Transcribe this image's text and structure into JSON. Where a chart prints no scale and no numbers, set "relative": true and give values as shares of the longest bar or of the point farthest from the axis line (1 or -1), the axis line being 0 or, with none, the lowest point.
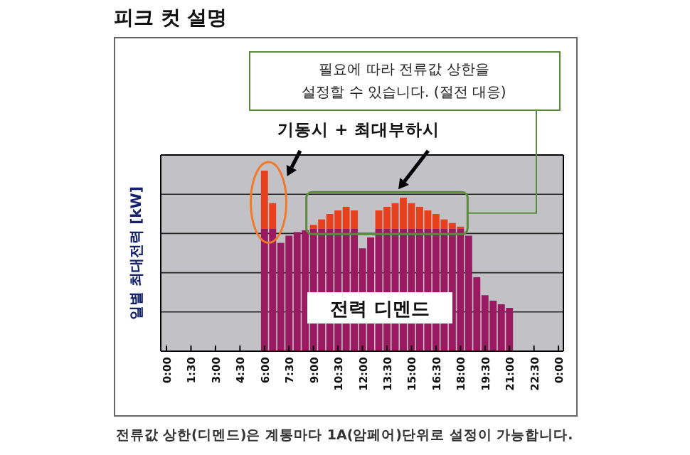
{
  "chart_data": {
    "type": "bar",
    "title": "피크 컷 설명",
    "ylabel": "일별 최대전력 [kW]",
    "relative": true,
    "stacked": true,
    "grid": "y",
    "x": [
      6,
      6.5,
      7,
      7.5,
      8,
      8.5,
      9,
      9.5,
      10,
      10.5,
      11,
      11.5,
      12,
      12.5,
      13,
      13.5,
      14,
      14.5,
      15,
      15.5,
      16,
      16.5,
      17,
      17.5,
      18,
      18.5,
      19,
      19.5,
      20,
      20.5,
      21
    ],
    "xlim": [
      -0.35,
      24.3
    ],
    "xticks": [
      {
        "value": 0,
        "label": "0:00"
      },
      {
        "value": 1.5,
        "label": "1:30"
      },
      {
        "value": 3,
        "label": "3:00"
      },
      {
        "value": 4.5,
        "label": "4:30"
      },
      {
        "value": 6,
        "label": "6:00"
      },
      {
        "value": 7.5,
        "label": "7:30"
      },
      {
        "value": 9,
        "label": "9:00"
      },
      {
        "value": 10.5,
        "label": "10:30"
      },
      {
        "value": 12,
        "label": "12:00"
      },
      {
        "value": 13.5,
        "label": "13:30"
      },
      {
        "value": 15,
        "label": "15:00"
      },
      {
        "value": 16.5,
        "label": "16:30"
      },
      {
        "value": 18,
        "label": "18:00"
      },
      {
        "value": 19.5,
        "label": "19:30"
      },
      {
        "value": 21,
        "label": "21:00"
      },
      {
        "value": 22.5,
        "label": "22:30"
      },
      {
        "value": 24,
        "label": "0:00"
      }
    ],
    "series": [
      {
        "name": "전력 디멘드",
        "color": "#9a1a62",
        "values": [
          0.68,
          0.68,
          0.6,
          0.64,
          0.66,
          0.67,
          0.68,
          0.68,
          0.68,
          0.68,
          0.68,
          0.68,
          0.57,
          0.63,
          0.68,
          0.68,
          0.68,
          0.68,
          0.68,
          0.68,
          0.68,
          0.68,
          0.68,
          0.68,
          0.68,
          0.64,
          0.41,
          0.31,
          0.28,
          0.26,
          0.24
        ]
      },
      {
        "color": "#e8401c",
        "values": [
          0.32,
          0.14,
          null,
          null,
          null,
          null,
          0.02,
          0.05,
          0.08,
          0.1,
          0.12,
          0.1,
          null,
          null,
          0.1,
          0.12,
          0.14,
          0.17,
          0.14,
          0.12,
          0.1,
          0.08,
          0.05,
          0.03,
          0.01,
          null,
          null,
          null,
          null,
          null,
          null
        ]
      }
    ],
    "annotations": [
      "필요에 따라 전류값 상한을\n설정할 수 있습니다. (절전 대응)",
      "기동시 + 최대부하시",
      "전류값 상한(디멘드)은 계통마다 1A(암페어)단위로 설정이 가능합니다."
    ]
  }
}
